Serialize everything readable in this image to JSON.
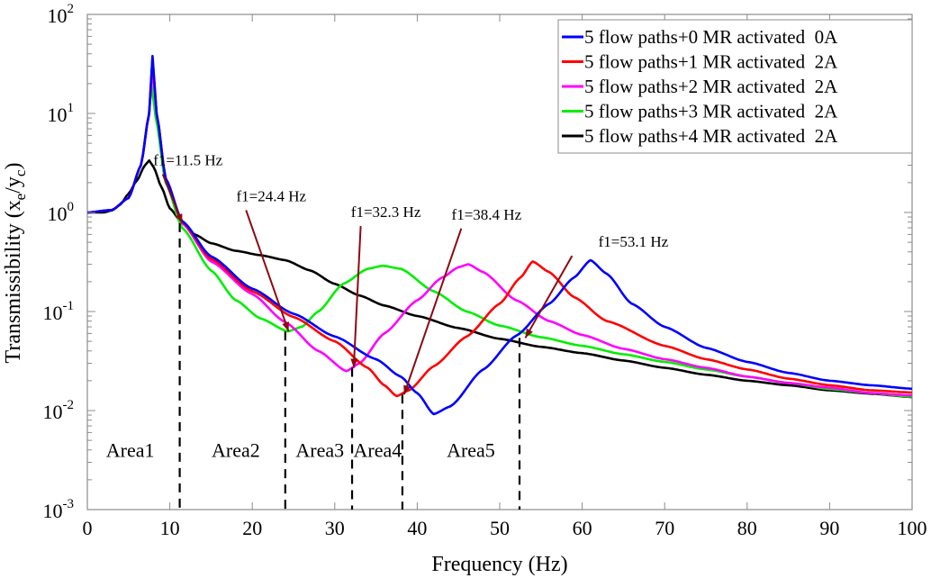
{
  "chart_data": {
    "type": "line",
    "title": "",
    "xlabel": "Frequency (Hz)",
    "ylabel": "Transmissibility (x_e/y_c)",
    "ylabel_parts": {
      "base": "Transmissibility (x",
      "sub1": "e",
      "mid": "/y",
      "sub2": "c",
      "end": ")"
    },
    "xlim": [
      0,
      100
    ],
    "ylim": [
      0.001,
      100
    ],
    "yscale": "log",
    "grid": false,
    "legend_position": "top-right",
    "x_ticks": [
      0,
      10,
      20,
      30,
      40,
      50,
      60,
      70,
      80,
      90,
      100
    ],
    "y_ticks": [
      {
        "exp": "2",
        "value": 100
      },
      {
        "exp": "1",
        "value": 10
      },
      {
        "exp": "0",
        "value": 1
      },
      {
        "exp": "-1",
        "value": 0.1
      },
      {
        "exp": "-2",
        "value": 0.01
      },
      {
        "exp": "-3",
        "value": 0.001
      }
    ],
    "series": [
      {
        "name": "5 flow paths+0 MR activated  0A",
        "color": "#0000ff",
        "x": [
          0,
          3,
          5,
          6.5,
          7.5,
          7.9,
          8.4,
          9.5,
          11.5,
          15,
          20,
          25,
          30,
          35,
          38,
          40,
          42,
          44,
          48,
          52,
          56,
          59,
          61,
          63,
          66,
          70,
          75,
          80,
          85,
          90,
          95,
          100
        ],
        "y": [
          1.0,
          1.06,
          1.4,
          3.0,
          10,
          38,
          10,
          2.2,
          0.82,
          0.36,
          0.17,
          0.095,
          0.056,
          0.033,
          0.022,
          0.015,
          0.0092,
          0.011,
          0.026,
          0.057,
          0.12,
          0.22,
          0.33,
          0.24,
          0.12,
          0.07,
          0.043,
          0.031,
          0.024,
          0.02,
          0.018,
          0.0166
        ]
      },
      {
        "name": "5 flow paths+1 MR activated  2A",
        "color": "#ff0000",
        "x": [
          0,
          3,
          5,
          6.5,
          7.5,
          7.9,
          8.4,
          9.5,
          11.5,
          15,
          20,
          25,
          30,
          34,
          36,
          37.5,
          39,
          42,
          46,
          50,
          52.5,
          54,
          56,
          59,
          63,
          70,
          75,
          80,
          85,
          90,
          95,
          100
        ],
        "y": [
          1.0,
          1.06,
          1.4,
          3.0,
          10,
          35,
          10,
          2.2,
          0.8,
          0.34,
          0.16,
          0.088,
          0.05,
          0.027,
          0.018,
          0.014,
          0.016,
          0.028,
          0.056,
          0.12,
          0.22,
          0.32,
          0.25,
          0.14,
          0.08,
          0.045,
          0.033,
          0.026,
          0.021,
          0.018,
          0.016,
          0.0152
        ]
      },
      {
        "name": "5 flow paths+2 MR activated  2A",
        "color": "#ff00ff",
        "x": [
          0,
          3,
          5,
          6.5,
          7.5,
          7.9,
          8.4,
          9.5,
          11.5,
          15,
          20,
          24,
          28,
          31.4,
          33,
          36,
          40,
          43,
          45,
          46.2,
          48,
          52,
          56,
          60,
          65,
          70,
          75,
          80,
          85,
          90,
          95,
          100
        ],
        "y": [
          1.0,
          1.06,
          1.4,
          3.0,
          10,
          28,
          10,
          2.2,
          0.78,
          0.32,
          0.15,
          0.078,
          0.04,
          0.025,
          0.03,
          0.06,
          0.13,
          0.22,
          0.28,
          0.3,
          0.25,
          0.13,
          0.08,
          0.058,
          0.042,
          0.033,
          0.027,
          0.022,
          0.019,
          0.017,
          0.015,
          0.0142
        ]
      },
      {
        "name": "5 flow paths+3 MR activated  2A",
        "color": "#00ee00",
        "x": [
          0,
          3,
          5,
          6.5,
          7.4,
          7.8,
          8.3,
          9.5,
          11.5,
          15,
          18,
          21,
          24.3,
          26,
          28,
          31,
          34,
          35.8,
          38,
          42,
          46,
          50,
          55,
          60,
          65,
          70,
          75,
          80,
          85,
          90,
          95,
          100
        ],
        "y": [
          1.0,
          1.06,
          1.4,
          3.0,
          9,
          19,
          9,
          2.0,
          0.7,
          0.26,
          0.13,
          0.085,
          0.063,
          0.07,
          0.1,
          0.19,
          0.27,
          0.29,
          0.27,
          0.16,
          0.1,
          0.072,
          0.055,
          0.045,
          0.037,
          0.031,
          0.026,
          0.022,
          0.019,
          0.0165,
          0.015,
          0.0138
        ]
      },
      {
        "name": "5 flow paths+4 MR activated  2A",
        "color": "#000000",
        "x": [
          0,
          2,
          3,
          4,
          5,
          6,
          7,
          7.5,
          8,
          9,
          10,
          11.5,
          13,
          15,
          18,
          21,
          24,
          27,
          30,
          33,
          36,
          40,
          45,
          50,
          55,
          60,
          65,
          70,
          75,
          80,
          85,
          90,
          95,
          100
        ],
        "y": [
          1.0,
          1.0,
          1.05,
          1.2,
          1.55,
          2.1,
          3.0,
          3.35,
          2.9,
          1.8,
          1.1,
          0.78,
          0.6,
          0.49,
          0.41,
          0.37,
          0.33,
          0.26,
          0.19,
          0.145,
          0.115,
          0.09,
          0.068,
          0.053,
          0.044,
          0.038,
          0.032,
          0.027,
          0.023,
          0.02,
          0.018,
          0.016,
          0.0148,
          0.0137
        ]
      }
    ],
    "annotations": [
      {
        "text": "f1=11.5 Hz",
        "x": 11.5,
        "y": 0.78,
        "label_x": 12.2,
        "label_y": 3.0
      },
      {
        "text": "f1=24.4 Hz",
        "x": 24.4,
        "y": 0.063,
        "label_x": 22.3,
        "label_y": 1.3
      },
      {
        "text": "f1=32.3 Hz",
        "x": 32.3,
        "y": 0.027,
        "label_x": 36.2,
        "label_y": 0.9
      },
      {
        "text": "f1=38.4 Hz",
        "x": 38.4,
        "y": 0.0145,
        "label_x": 48.4,
        "label_y": 0.85
      },
      {
        "text": "f1=53.1 Hz",
        "x": 53.1,
        "y": 0.054,
        "label_x": 66.2,
        "label_y": 0.45
      }
    ],
    "vlines": [
      {
        "x": 11.2,
        "y_top": 0.78
      },
      {
        "x": 24.0,
        "y_top": 0.063
      },
      {
        "x": 32.1,
        "y_top": 0.027
      },
      {
        "x": 38.2,
        "y_top": 0.0145
      },
      {
        "x": 52.4,
        "y_top": 0.054
      }
    ],
    "area_labels": [
      {
        "text": "Area1",
        "x": 5.2,
        "y": 0.0034
      },
      {
        "text": "Area2",
        "x": 18.0,
        "y": 0.0034
      },
      {
        "text": "Area3",
        "x": 28.2,
        "y": 0.0034
      },
      {
        "text": "Area4",
        "x": 35.2,
        "y": 0.0034
      },
      {
        "text": "Area5",
        "x": 46.5,
        "y": 0.0034
      }
    ],
    "annotation_color": "#8b0a14"
  }
}
